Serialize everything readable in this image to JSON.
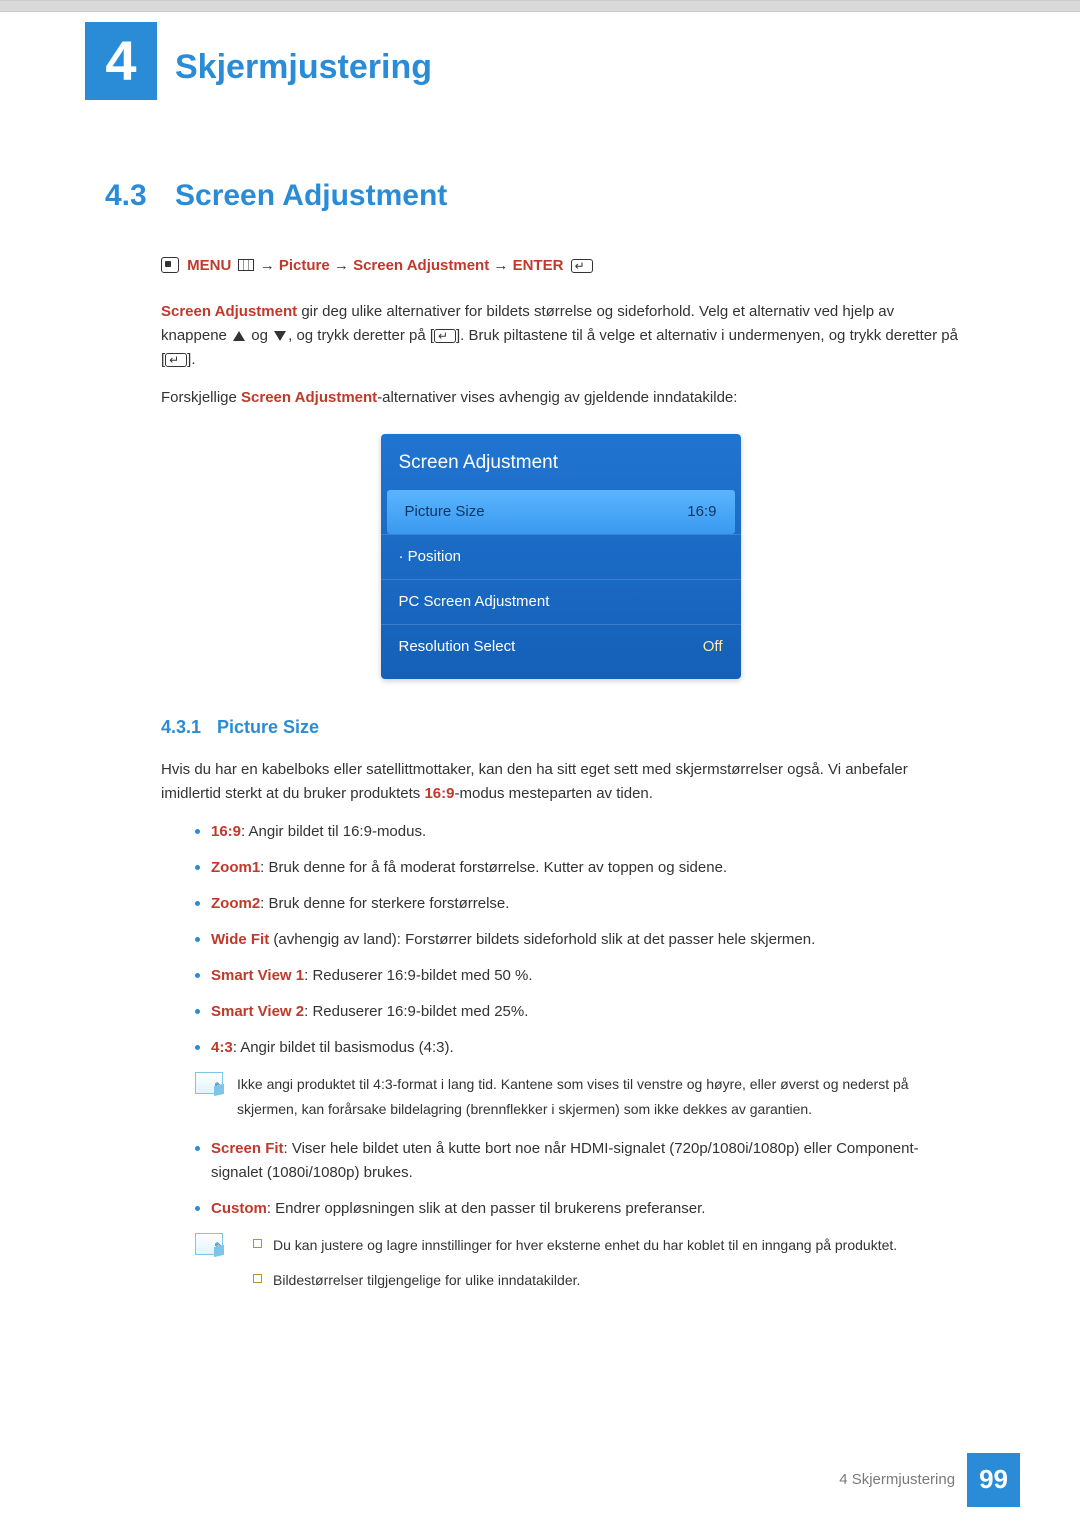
{
  "chapter": {
    "number": "4",
    "title": "Skjermjustering"
  },
  "section": {
    "number": "4.3",
    "title": "Screen Adjustment"
  },
  "nav": {
    "menu": "MENU",
    "arrow": " → ",
    "picture": "Picture",
    "screen_adj": "Screen Adjustment",
    "enter": "ENTER"
  },
  "intro": {
    "p1_pre": "Screen Adjustment",
    "p1_rest": " gir deg ulike alternativer for bildets størrelse og sideforhold. Velg et alternativ ved hjelp av knappene ",
    "p1_mid": " og ",
    "p1_after_arrows": ", og trykk deretter på [",
    "p1_close1": "]. Bruk piltastene til å velge et alternativ i undermenyen, og trykk deretter på [",
    "p1_close2": "].",
    "p2_pre": "Forskjellige ",
    "p2_kw": "Screen Adjustment",
    "p2_rest": "-alternativer vises avhengig av gjeldende inndatakilde:"
  },
  "osd": {
    "title": "Screen Adjustment",
    "rows": [
      {
        "label": "Picture Size",
        "value": "16:9",
        "selected": true
      },
      {
        "label": "· Position",
        "value": "",
        "selected": false
      },
      {
        "label": "PC Screen Adjustment",
        "value": "",
        "selected": false
      },
      {
        "label": "Resolution Select",
        "value": "Off",
        "selected": false
      }
    ]
  },
  "subsection": {
    "number": "4.3.1",
    "title": "Picture Size"
  },
  "picture_size": {
    "intro_pre": "Hvis du har en kabelboks eller satellittmottaker, kan den ha sitt eget sett med skjermstørrelser også. Vi anbefaler imidlertid sterkt at du bruker produktets ",
    "intro_kw": "16:9",
    "intro_post": "-modus mesteparten av tiden.",
    "items": [
      {
        "kw": "16:9",
        "text": ": Angir bildet til 16:9-modus."
      },
      {
        "kw": "Zoom1",
        "text": ": Bruk denne for å få moderat forstørrelse. Kutter av toppen og sidene."
      },
      {
        "kw": "Zoom2",
        "text": ": Bruk denne for sterkere forstørrelse."
      },
      {
        "kw": "Wide Fit",
        "text": " (avhengig av land): Forstørrer bildets sideforhold slik at det passer hele skjermen."
      },
      {
        "kw": "Smart View 1",
        "text": ": Reduserer 16:9-bildet med 50 %."
      },
      {
        "kw": "Smart View 2",
        "text": ": Reduserer 16:9-bildet med 25%."
      },
      {
        "kw": "4:3",
        "text": ": Angir bildet til basismodus (4:3)."
      }
    ],
    "note1": "Ikke angi produktet til 4:3-format i lang tid. Kantene som vises til venstre og høyre, eller øverst og nederst på skjermen, kan forårsake bildelagring (brennflekker i skjermen) som ikke dekkes av garantien.",
    "items2": [
      {
        "kw": "Screen Fit",
        "text": ": Viser hele bildet uten å kutte bort noe når HDMI-signalet (720p/1080i/1080p) eller Component-signalet (1080i/1080p) brukes."
      },
      {
        "kw": "Custom",
        "text": ": Endrer oppløsningen slik at den passer til brukerens preferanser."
      }
    ],
    "note2": [
      "Du kan justere og lagre innstillinger for hver eksterne enhet du har koblet til en inngang på produktet.",
      "Bildestørrelser tilgjengelige for ulike inndatakilder."
    ]
  },
  "footer": {
    "label": "4 Skjermjustering",
    "page": "99"
  }
}
